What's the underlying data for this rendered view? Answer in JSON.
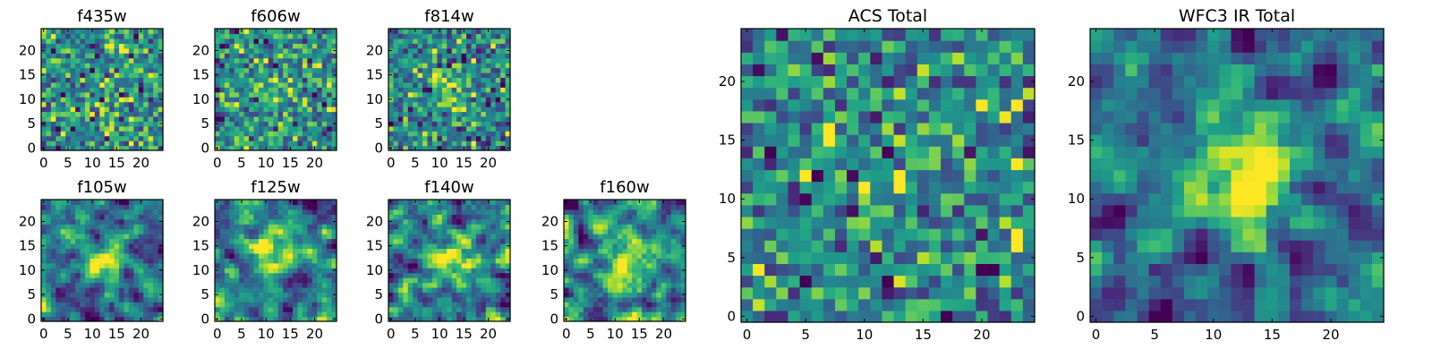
{
  "chart_data": [
    {
      "type": "heatmap",
      "title": "f435w",
      "xlim": [
        -0.5,
        24.5
      ],
      "ylim": [
        -0.5,
        24.5
      ],
      "xticks": [
        0,
        5,
        10,
        15,
        20
      ],
      "yticks": [
        0,
        5,
        10,
        15,
        20
      ],
      "colormap": "viridis",
      "grid": false,
      "pattern": "noise",
      "seed": 11,
      "peak": 0.0
    },
    {
      "type": "heatmap",
      "title": "f606w",
      "xlim": [
        -0.5,
        24.5
      ],
      "ylim": [
        -0.5,
        24.5
      ],
      "xticks": [
        0,
        5,
        10,
        15,
        20
      ],
      "yticks": [
        0,
        5,
        10,
        15,
        20
      ],
      "colormap": "viridis",
      "grid": false,
      "pattern": "noise",
      "seed": 23,
      "peak": 0.05
    },
    {
      "type": "heatmap",
      "title": "f814w",
      "xlim": [
        -0.5,
        24.5
      ],
      "ylim": [
        -0.5,
        24.5
      ],
      "xticks": [
        0,
        5,
        10,
        15,
        20
      ],
      "yticks": [
        0,
        5,
        10,
        15,
        20
      ],
      "colormap": "viridis",
      "grid": false,
      "pattern": "noise",
      "seed": 37,
      "peak": 0.2
    },
    {
      "type": "heatmap",
      "title": "f105w",
      "xlim": [
        -0.5,
        24.5
      ],
      "ylim": [
        -0.5,
        24.5
      ],
      "xticks": [
        0,
        5,
        10,
        15,
        20
      ],
      "yticks": [
        0,
        5,
        10,
        15,
        20
      ],
      "colormap": "viridis",
      "grid": false,
      "pattern": "source",
      "seed": 41,
      "peak": 0.35
    },
    {
      "type": "heatmap",
      "title": "f125w",
      "xlim": [
        -0.5,
        24.5
      ],
      "ylim": [
        -0.5,
        24.5
      ],
      "xticks": [
        0,
        5,
        10,
        15,
        20
      ],
      "yticks": [
        0,
        5,
        10,
        15,
        20
      ],
      "colormap": "viridis",
      "grid": false,
      "pattern": "source",
      "seed": 53,
      "peak": 0.3
    },
    {
      "type": "heatmap",
      "title": "f140w",
      "xlim": [
        -0.5,
        24.5
      ],
      "ylim": [
        -0.5,
        24.5
      ],
      "xticks": [
        0,
        5,
        10,
        15,
        20
      ],
      "yticks": [
        0,
        5,
        10,
        15,
        20
      ],
      "colormap": "viridis",
      "grid": false,
      "pattern": "source",
      "seed": 67,
      "peak": 0.3
    },
    {
      "type": "heatmap",
      "title": "f160w",
      "xlim": [
        -0.5,
        24.5
      ],
      "ylim": [
        -0.5,
        24.5
      ],
      "xticks": [
        0,
        5,
        10,
        15,
        20
      ],
      "yticks": [
        0,
        5,
        10,
        15,
        20
      ],
      "colormap": "viridis",
      "grid": false,
      "pattern": "source",
      "seed": 79,
      "peak": 0.35
    },
    {
      "type": "heatmap",
      "title": "ACS Total",
      "xlim": [
        -0.5,
        24.5
      ],
      "ylim": [
        -0.5,
        24.5
      ],
      "xticks": [
        0,
        5,
        10,
        15,
        20
      ],
      "yticks": [
        0,
        5,
        10,
        15,
        20
      ],
      "colormap": "viridis",
      "grid": false,
      "pattern": "noise",
      "seed": 97,
      "peak": 0.12
    },
    {
      "type": "heatmap",
      "title": "WFC3 IR Total",
      "xlim": [
        -0.5,
        24.5
      ],
      "ylim": [
        -0.5,
        24.5
      ],
      "xticks": [
        0,
        5,
        10,
        15,
        20
      ],
      "yticks": [
        0,
        5,
        10,
        15,
        20
      ],
      "colormap": "viridis",
      "grid": false,
      "pattern": "smooth",
      "seed": 113,
      "peak": 0.45
    }
  ]
}
